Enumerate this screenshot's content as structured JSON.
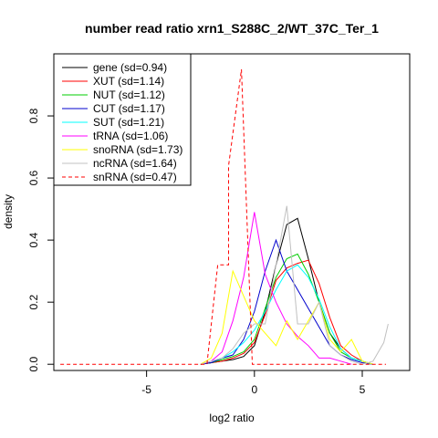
{
  "chart_data": {
    "type": "line",
    "title": "number read ratio xrn1_S288C_2/WT_37C_Ter_1",
    "xlabel": "log2 ratio",
    "ylabel": "density",
    "xlim": [
      -9.3,
      7.2
    ],
    "ylim": [
      -0.02,
      1.0
    ],
    "x_ticks": [
      -5,
      0,
      5
    ],
    "y_ticks": [
      0.0,
      0.2,
      0.4,
      0.6,
      0.8
    ],
    "x_tick_labels": [
      "-5",
      "0",
      "5"
    ],
    "y_tick_labels": [
      "0.0",
      "0.2",
      "0.4",
      "0.6",
      "0.8"
    ],
    "grid": false,
    "legend_position": "top-left",
    "series": [
      {
        "name": "gene (sd=0.94)",
        "color": "#000000",
        "dash": "solid",
        "x": [
          -2.5,
          -2.0,
          -1.5,
          -1.0,
          -0.5,
          0.0,
          0.5,
          1.0,
          1.5,
          2.0,
          2.5,
          3.0,
          3.5,
          4.0,
          4.5,
          5.0,
          5.5
        ],
        "y": [
          0.0,
          0.005,
          0.01,
          0.015,
          0.025,
          0.06,
          0.17,
          0.32,
          0.45,
          0.47,
          0.34,
          0.2,
          0.1,
          0.05,
          0.02,
          0.01,
          0.0
        ]
      },
      {
        "name": "XUT (sd=1.14)",
        "color": "#ff0000",
        "dash": "solid",
        "x": [
          -2.5,
          -2.0,
          -1.5,
          -1.0,
          -0.5,
          0.0,
          0.5,
          1.0,
          1.5,
          2.0,
          2.5,
          3.0,
          3.5,
          4.0,
          4.5,
          5.0,
          5.5
        ],
        "y": [
          0.0,
          0.005,
          0.01,
          0.02,
          0.035,
          0.07,
          0.16,
          0.27,
          0.31,
          0.325,
          0.335,
          0.26,
          0.15,
          0.06,
          0.03,
          0.01,
          0.0
        ]
      },
      {
        "name": "NUT (sd=1.12)",
        "color": "#00cc00",
        "dash": "solid",
        "x": [
          -2.5,
          -2.0,
          -1.5,
          -1.0,
          -0.5,
          0.0,
          0.5,
          1.0,
          1.5,
          2.0,
          2.5,
          3.0,
          3.5,
          4.0,
          4.5,
          5.0,
          5.5
        ],
        "y": [
          0.0,
          0.005,
          0.015,
          0.025,
          0.04,
          0.08,
          0.18,
          0.28,
          0.34,
          0.355,
          0.29,
          0.2,
          0.1,
          0.04,
          0.02,
          0.01,
          0.0
        ]
      },
      {
        "name": "CUT (sd=1.17)",
        "color": "#0000cc",
        "dash": "solid",
        "x": [
          -2.5,
          -2.0,
          -1.5,
          -1.0,
          -0.5,
          0.0,
          0.5,
          1.0,
          1.5,
          2.0,
          2.5,
          3.0,
          3.5,
          4.0,
          4.5,
          5.0,
          5.5
        ],
        "y": [
          0.0,
          0.005,
          0.02,
          0.03,
          0.08,
          0.17,
          0.3,
          0.4,
          0.3,
          0.24,
          0.18,
          0.12,
          0.06,
          0.03,
          0.015,
          0.005,
          0.0
        ]
      },
      {
        "name": "SUT (sd=1.21)",
        "color": "#00ffff",
        "dash": "solid",
        "x": [
          -2.5,
          -2.0,
          -1.5,
          -1.0,
          -0.5,
          0.0,
          0.5,
          1.0,
          1.5,
          2.0,
          2.5,
          3.0,
          3.5,
          4.0,
          4.5,
          5.0,
          5.5
        ],
        "y": [
          0.0,
          0.01,
          0.02,
          0.04,
          0.07,
          0.11,
          0.17,
          0.24,
          0.3,
          0.32,
          0.28,
          0.21,
          0.12,
          0.05,
          0.02,
          0.01,
          0.0
        ]
      },
      {
        "name": "tRNA (sd=1.06)",
        "color": "#ff00ff",
        "dash": "solid",
        "x": [
          -2.5,
          -2.0,
          -1.5,
          -1.0,
          -0.5,
          0.0,
          0.5,
          1.0,
          1.5,
          2.0,
          2.5,
          3.0,
          3.5,
          4.0,
          4.5
        ],
        "y": [
          0.0,
          0.01,
          0.04,
          0.14,
          0.28,
          0.49,
          0.29,
          0.2,
          0.13,
          0.09,
          0.06,
          0.02,
          0.02,
          0.01,
          0.0
        ]
      },
      {
        "name": "snoRNA (sd=1.73)",
        "color": "#ffff00",
        "dash": "solid",
        "x": [
          -2.5,
          -2.0,
          -1.5,
          -1.0,
          -0.5,
          0.0,
          0.5,
          1.0,
          1.5,
          2.0,
          2.5,
          3.0,
          3.5,
          4.0,
          4.5,
          5.0,
          5.5
        ],
        "y": [
          0.0,
          0.02,
          0.1,
          0.3,
          0.22,
          0.14,
          0.1,
          0.06,
          0.14,
          0.08,
          0.14,
          0.2,
          0.08,
          0.04,
          0.08,
          0.01,
          0.0
        ]
      },
      {
        "name": "ncRNA (sd=1.64)",
        "color": "#c0c0c0",
        "dash": "solid",
        "x": [
          -2.5,
          -2.0,
          -1.5,
          -1.0,
          -0.5,
          0.0,
          0.5,
          1.0,
          1.5,
          2.0,
          2.5,
          3.0,
          3.5,
          4.0,
          4.5,
          5.0,
          5.5,
          6.0,
          6.2
        ],
        "y": [
          0.0,
          0.01,
          0.02,
          0.05,
          0.1,
          0.13,
          0.13,
          0.32,
          0.51,
          0.13,
          0.13,
          0.2,
          0.06,
          0.03,
          0.01,
          0.0,
          0.01,
          0.07,
          0.13
        ]
      },
      {
        "name": "snRNA (sd=0.47)",
        "color": "#ff0000",
        "dash": "dashed",
        "x": [
          -9.0,
          -2.2,
          -1.7,
          -1.2,
          -1.2,
          -0.6,
          -0.1,
          0.4,
          6.1
        ],
        "y": [
          0.0,
          0.0,
          0.32,
          0.32,
          0.64,
          0.95,
          0.0,
          0.0,
          0.0
        ]
      }
    ]
  }
}
